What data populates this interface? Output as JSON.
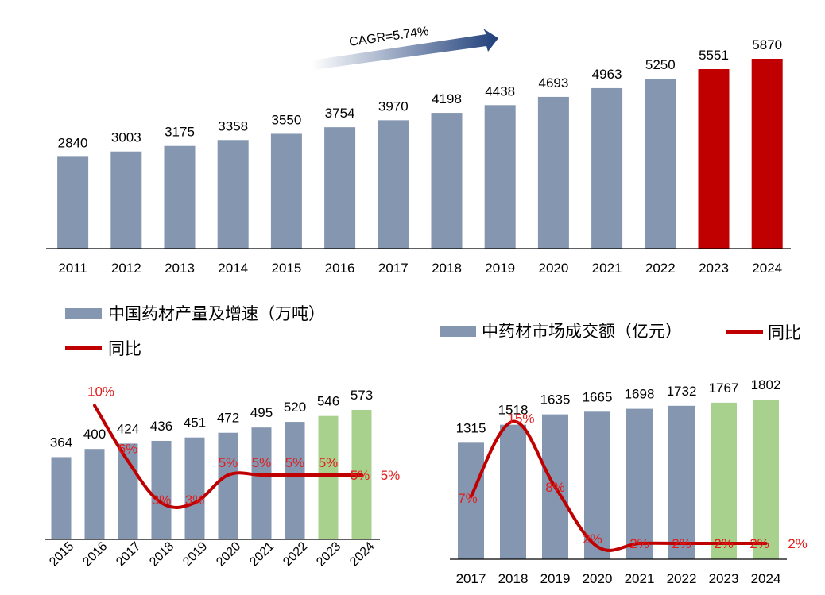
{
  "colors": {
    "bar_gray": "#8496b0",
    "bar_red": "#c00000",
    "bar_green": "#a9d18e",
    "line_red": "#c00000",
    "label_red": "#e11d1d",
    "text_dark": "#000000",
    "arrow_start": "#ffffff",
    "arrow_end": "#1f3f7a"
  },
  "chart_data": [
    {
      "type": "bar",
      "title": "",
      "categories": [
        "2011",
        "2012",
        "2013",
        "2014",
        "2015",
        "2016",
        "2017",
        "2018",
        "2019",
        "2020",
        "2021",
        "2022",
        "2023",
        "2024"
      ],
      "values": [
        2840,
        3003,
        3175,
        3358,
        3550,
        3754,
        3970,
        4198,
        4438,
        4693,
        4963,
        5250,
        5551,
        5870
      ],
      "value_labels": [
        "2840",
        "3003",
        "3175",
        "3358",
        "3550",
        "3754",
        "3970",
        "4198",
        "4438",
        "4693",
        "4963",
        "5250",
        "5551",
        "5870"
      ],
      "highlight_categories": [
        "2023",
        "2024"
      ],
      "annotation": "CAGR=5.74%",
      "ylim": [
        0,
        6600
      ],
      "grid": false
    },
    {
      "type": "bar",
      "title": "",
      "categories": [
        "2015",
        "2016",
        "2017",
        "2018",
        "2019",
        "2020",
        "2021",
        "2022",
        "2023",
        "2024"
      ],
      "series": [
        {
          "name": "中国药材产量及增速（万吨）",
          "values": [
            364,
            400,
            424,
            436,
            451,
            472,
            495,
            520,
            546,
            573
          ],
          "labels": [
            "364",
            "400",
            "424",
            "436",
            "451",
            "472",
            "495",
            "520",
            "546",
            "573"
          ]
        },
        {
          "name": "同比",
          "type": "line",
          "values": [
            null,
            10,
            6,
            3,
            3,
            5,
            5,
            5,
            5,
            5
          ],
          "labels": [
            "",
            "10%",
            "6%",
            "3%",
            "3%",
            "5%",
            "5%",
            "5%",
            "5%",
            "5%"
          ]
        }
      ],
      "highlight_categories": [
        "2023",
        "2024"
      ],
      "legend": [
        "中国药材产量及增速（万吨）",
        "同比"
      ],
      "ylim": [
        0,
        600
      ],
      "y2lim": [
        -10,
        12
      ],
      "grid": false
    },
    {
      "type": "bar",
      "title": "",
      "categories": [
        "2017",
        "2018",
        "2019",
        "2020",
        "2021",
        "2022",
        "2023",
        "2024"
      ],
      "series": [
        {
          "name": "中药材市场成交额（亿元）",
          "values": [
            1315,
            1518,
            1635,
            1665,
            1698,
            1732,
            1767,
            1802
          ],
          "labels": [
            "1315",
            "1518",
            "1635",
            "1665",
            "1698",
            "1732",
            "1767",
            "1802"
          ]
        },
        {
          "name": "同比",
          "type": "line",
          "values": [
            7,
            15,
            8,
            2,
            2,
            2,
            2,
            2
          ],
          "labels": [
            "7%",
            "15%",
            "8%",
            "2%",
            "2%",
            "2%",
            "2%",
            "2%"
          ]
        }
      ],
      "highlight_categories": [
        "2023",
        "2024"
      ],
      "legend": [
        "中药材市场成交额（亿元）",
        "同比"
      ],
      "ylim": [
        0,
        1950
      ],
      "y2lim": [
        0,
        18
      ],
      "grid": false
    }
  ]
}
